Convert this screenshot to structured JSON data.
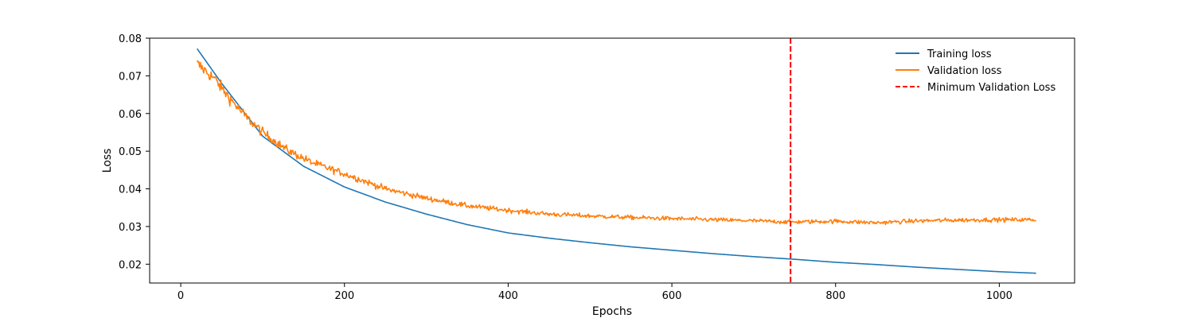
{
  "chart_data": {
    "type": "line",
    "xlabel": "Epochs",
    "ylabel": "Loss",
    "xlim": [
      -38,
      1092
    ],
    "ylim": [
      0.015,
      0.08
    ],
    "xticks": [
      0,
      200,
      400,
      600,
      800,
      1000
    ],
    "yticks": [
      0.02,
      0.03,
      0.04,
      0.05,
      0.06,
      0.07,
      0.08
    ],
    "grid": false,
    "legend_position": "top-right",
    "series": [
      {
        "name": "Training loss",
        "color": "#1f77b4",
        "style": "solid",
        "x_range": [
          20,
          1045
        ],
        "keypoints": [
          [
            20,
            0.0772
          ],
          [
            50,
            0.068
          ],
          [
            100,
            0.054
          ],
          [
            150,
            0.046
          ],
          [
            200,
            0.0405
          ],
          [
            250,
            0.0365
          ],
          [
            300,
            0.0333
          ],
          [
            350,
            0.0305
          ],
          [
            400,
            0.0283
          ],
          [
            450,
            0.0269
          ],
          [
            500,
            0.0257
          ],
          [
            550,
            0.0246
          ],
          [
            600,
            0.0237
          ],
          [
            650,
            0.0228
          ],
          [
            700,
            0.022
          ],
          [
            750,
            0.0213
          ],
          [
            800,
            0.0205
          ],
          [
            850,
            0.0199
          ],
          [
            900,
            0.0192
          ],
          [
            950,
            0.0186
          ],
          [
            1000,
            0.018
          ],
          [
            1045,
            0.0176
          ]
        ]
      },
      {
        "name": "Validation loss",
        "color": "#ff7f0e",
        "style": "solid",
        "noisy": true,
        "x_range": [
          20,
          1045
        ],
        "keypoints": [
          [
            20,
            0.0732
          ],
          [
            40,
            0.0695
          ],
          [
            60,
            0.064
          ],
          [
            80,
            0.059
          ],
          [
            100,
            0.055
          ],
          [
            130,
            0.0503
          ],
          [
            160,
            0.047
          ],
          [
            200,
            0.044
          ],
          [
            250,
            0.04
          ],
          [
            300,
            0.0375
          ],
          [
            350,
            0.0355
          ],
          [
            400,
            0.0343
          ],
          [
            450,
            0.0333
          ],
          [
            500,
            0.0328
          ],
          [
            550,
            0.0324
          ],
          [
            600,
            0.0321
          ],
          [
            650,
            0.0318
          ],
          [
            700,
            0.0315
          ],
          [
            745,
            0.0312
          ],
          [
            800,
            0.0314
          ],
          [
            850,
            0.031
          ],
          [
            900,
            0.0315
          ],
          [
            950,
            0.0317
          ],
          [
            1000,
            0.0318
          ],
          [
            1045,
            0.0318
          ]
        ]
      }
    ],
    "vline": {
      "name": "Minimum Validation Loss",
      "x": 745,
      "color": "#ff0000",
      "style": "dashed"
    }
  }
}
